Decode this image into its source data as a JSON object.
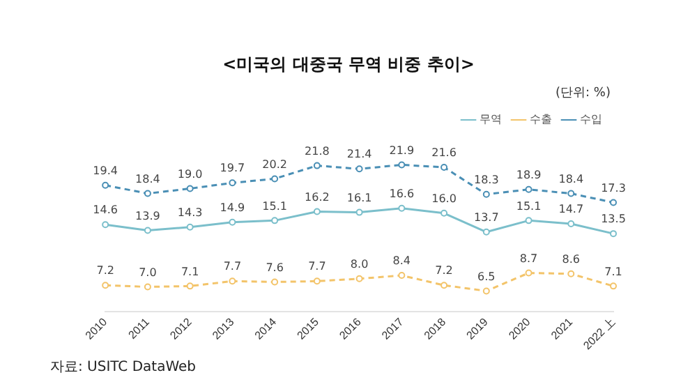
{
  "chart_data": {
    "type": "line",
    "title": "<미국의 대중국 무역 비중 추이>",
    "annotations": [
      "(단위: %)",
      "자료: USITC DataWeb"
    ],
    "categories": [
      "2010",
      "2011",
      "2012",
      "2013",
      "2014",
      "2015",
      "2016",
      "2017",
      "2018",
      "2019",
      "2020",
      "2021",
      "2022 上"
    ],
    "series": [
      {
        "name": "무역",
        "color": "#7bbfcb",
        "line_style": "solid",
        "values": [
          14.6,
          13.9,
          14.3,
          14.9,
          15.1,
          16.2,
          16.1,
          16.6,
          16.0,
          13.7,
          15.1,
          14.7,
          13.5
        ],
        "value_labels": [
          "14.6",
          "13.9",
          "14.3",
          "14.9",
          "15.1",
          "16.2",
          "16.1",
          "16.6",
          "16.0",
          "13.7",
          "15.1",
          "14.7",
          "13.5"
        ]
      },
      {
        "name": "수출",
        "color": "#f3c46a",
        "line_style": "dashed",
        "values": [
          7.2,
          7.0,
          7.1,
          7.7,
          7.6,
          7.7,
          8.0,
          8.4,
          7.2,
          6.5,
          8.7,
          8.6,
          7.1
        ],
        "value_labels": [
          "7.2",
          "7.0",
          "7.1",
          "7.7",
          "7.6",
          "7.7",
          "8.0",
          "8.4",
          "7.2",
          "6.5",
          "8.7",
          "8.6",
          "7.1"
        ]
      },
      {
        "name": "수입",
        "color": "#4a8fb5",
        "line_style": "dashed",
        "values": [
          19.4,
          18.4,
          19.0,
          19.7,
          20.2,
          21.8,
          21.4,
          21.9,
          21.6,
          18.3,
          18.9,
          18.4,
          17.3
        ],
        "value_labels": [
          "19.4",
          "18.4",
          "19.0",
          "19.7",
          "20.2",
          "21.8",
          "21.4",
          "21.9",
          "21.6",
          "18.3",
          "18.9",
          "18.4",
          "17.3"
        ]
      }
    ],
    "marker": "circle",
    "legend": "top right"
  }
}
